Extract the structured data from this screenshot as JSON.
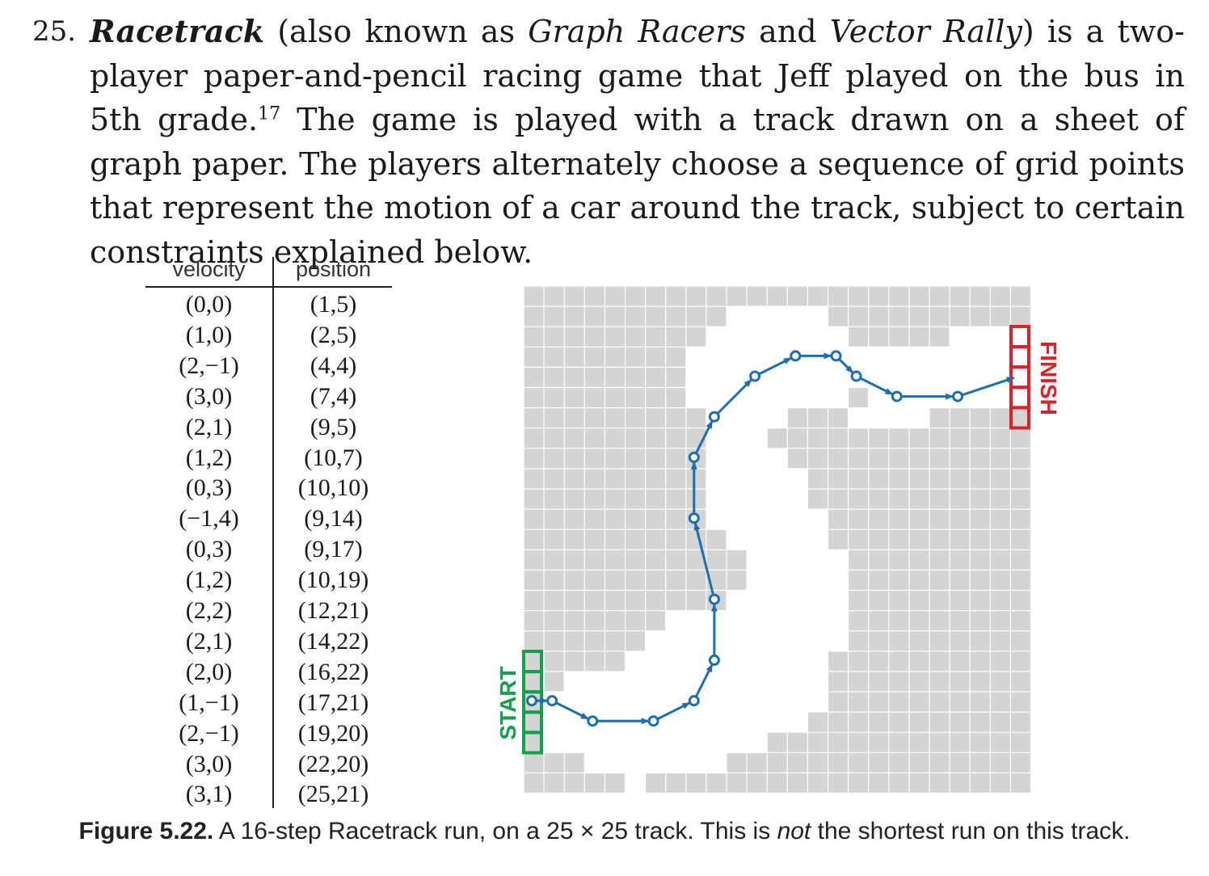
{
  "problem": {
    "number": "25.",
    "title": "Racetrack",
    "segments": [
      {
        "t": " (also known as ",
        "i": false
      },
      {
        "t": "Graph Racers",
        "i": true
      },
      {
        "t": " and ",
        "i": false
      },
      {
        "t": "Vector Rally",
        "i": true
      },
      {
        "t": ") is a two-player paper-and-pencil racing game that Jeff played on the bus in 5th grade.",
        "i": false
      }
    ],
    "footnote_mark": "17",
    "rest": " The game is played with a track drawn on a sheet of graph paper. The players alternately choose a sequence of grid points that represent the motion of a car around the track, subject to certain constraints explained below."
  },
  "table": {
    "head_velocity": "velocity",
    "head_position": "position",
    "rows": [
      {
        "v": "(0,0)",
        "p": "(1,5)"
      },
      {
        "v": "(1,0)",
        "p": "(2,5)"
      },
      {
        "v": "(2,−1)",
        "p": "(4,4)"
      },
      {
        "v": "(3,0)",
        "p": "(7,4)"
      },
      {
        "v": "(2,1)",
        "p": "(9,5)"
      },
      {
        "v": "(1,2)",
        "p": "(10,7)"
      },
      {
        "v": "(0,3)",
        "p": "(10,10)"
      },
      {
        "v": "(−1,4)",
        "p": "(9,14)"
      },
      {
        "v": "(0,3)",
        "p": "(9,17)"
      },
      {
        "v": "(1,2)",
        "p": "(10,19)"
      },
      {
        "v": "(2,2)",
        "p": "(12,21)"
      },
      {
        "v": "(2,1)",
        "p": "(14,22)"
      },
      {
        "v": "(2,0)",
        "p": "(16,22)"
      },
      {
        "v": "(1,−1)",
        "p": "(17,21)"
      },
      {
        "v": "(2,−1)",
        "p": "(19,20)"
      },
      {
        "v": "(3,0)",
        "p": "(22,20)"
      },
      {
        "v": "(3,1)",
        "p": "(25,21)"
      }
    ]
  },
  "track": {
    "start_label": "START",
    "finish_label": "FINISH",
    "colors": {
      "wall": "#d4d4d4",
      "road": "#ffffff",
      "grid": "#ffffff",
      "path": "#1a6fb3",
      "start": "#12a04a",
      "finish": "#e02027"
    }
  },
  "caption": {
    "label": "Figure 5.22.",
    "text_before": " A 16-step Racetrack run, on a 25 × 25 track. This is ",
    "emph": "not",
    "text_after": " the shortest run on this track."
  }
}
